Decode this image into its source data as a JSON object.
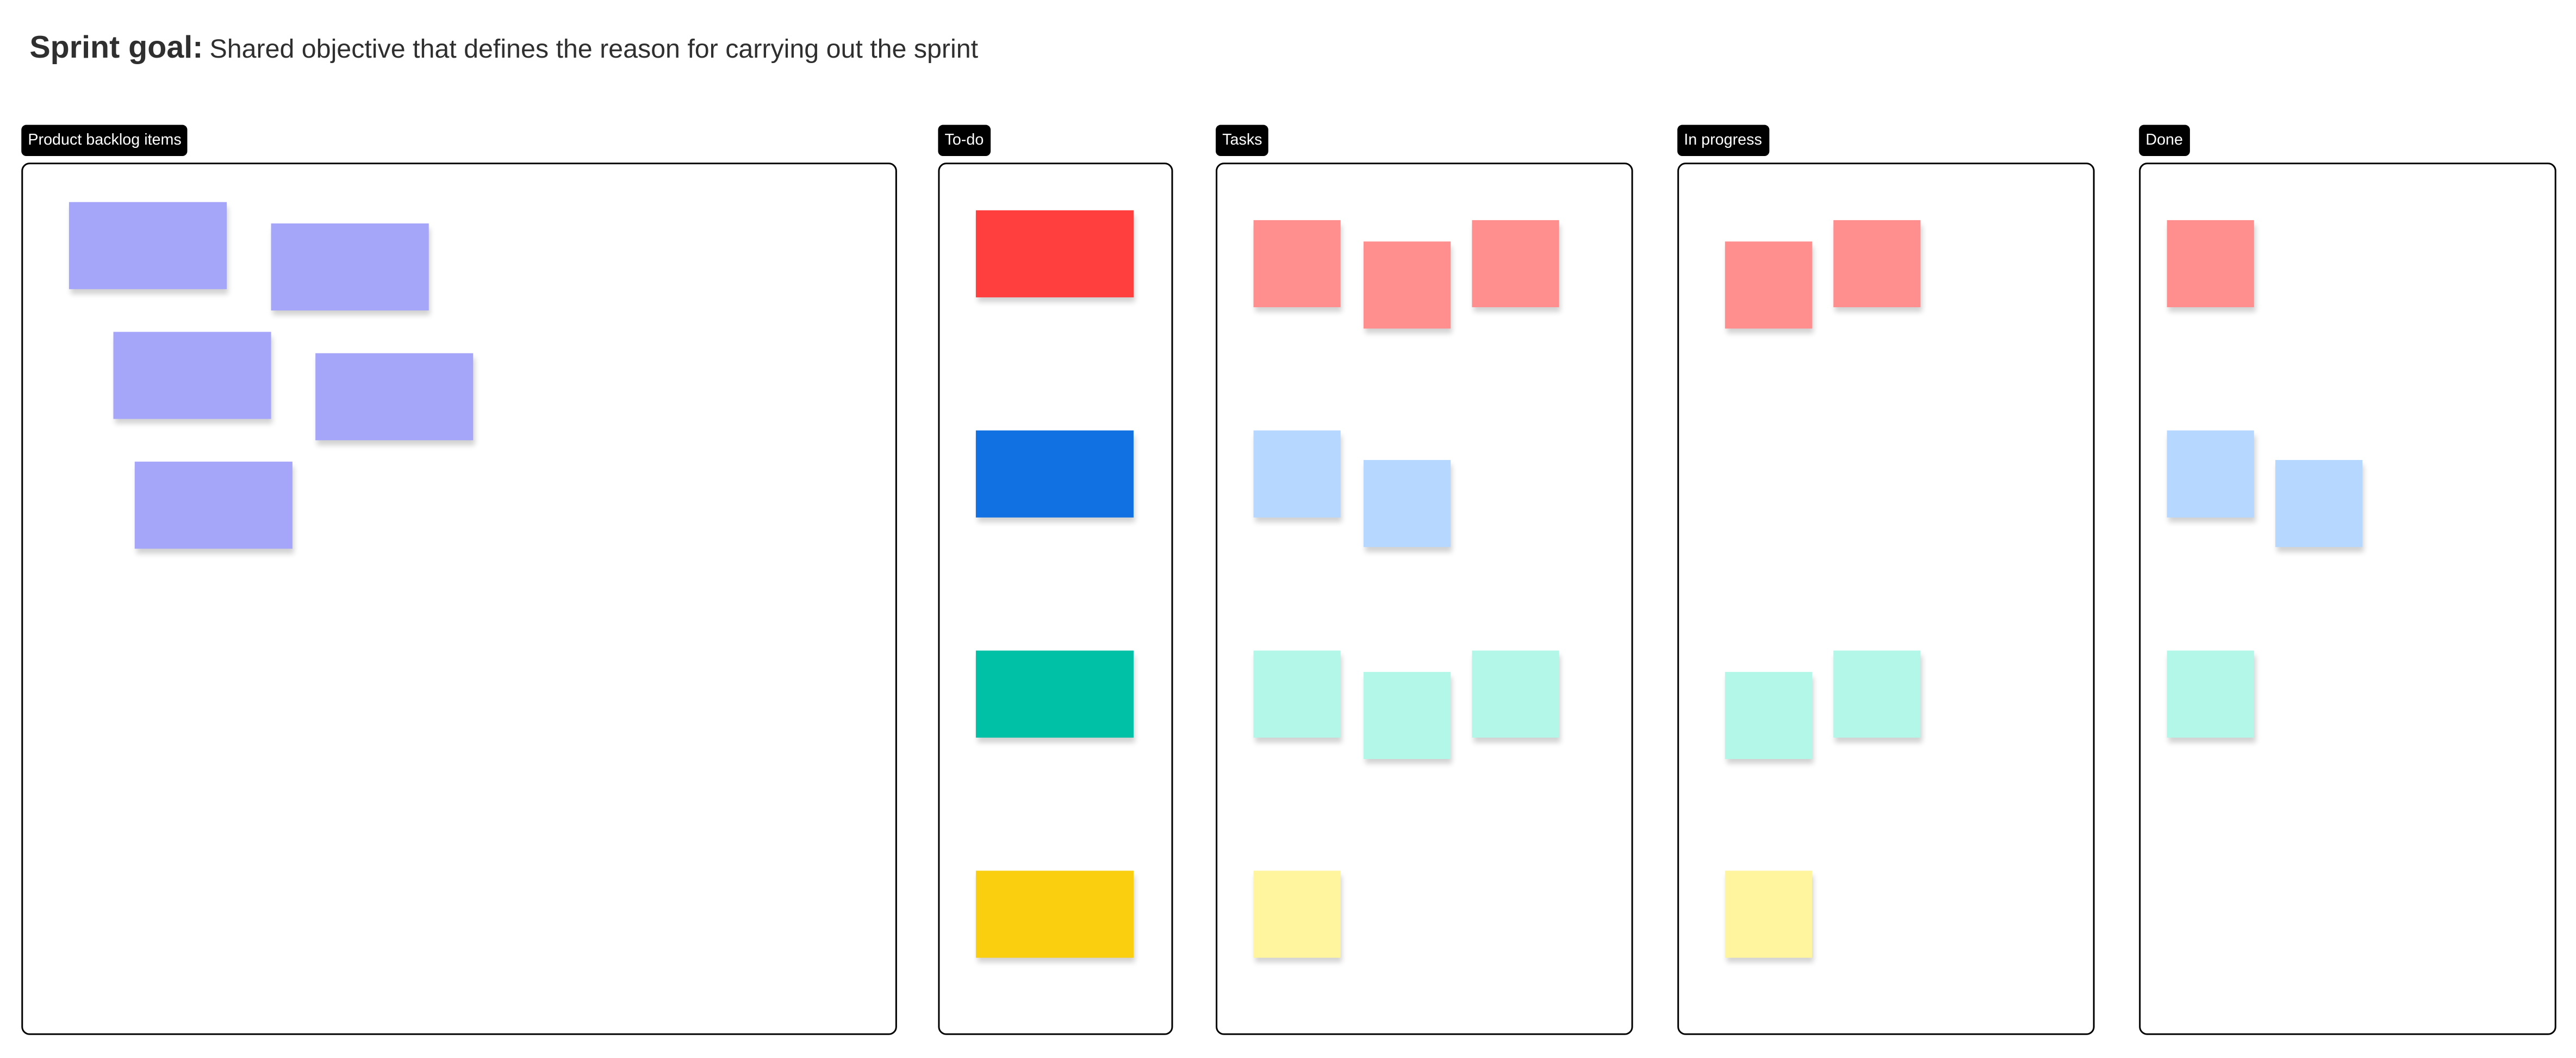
{
  "header": {
    "title_bold": "Sprint goal:",
    "title_text": "Shared objective that defines the reason for carrying out the sprint"
  },
  "palette": {
    "purple": "#A5A5FA",
    "red": "#FF3E3E",
    "blue": "#1271E2",
    "teal": "#00C0A6",
    "yellow": "#F9CF10",
    "pink": "#FF8E8E",
    "light_blue": "#B6D7FF",
    "mint": "#B2F7E8",
    "light_yellow": "#FFF59E"
  },
  "columns": [
    {
      "label": "Product backlog items",
      "notes": [
        "purple",
        "purple",
        "purple",
        "purple",
        "purple"
      ]
    },
    {
      "label": "To-do",
      "notes": [
        "red",
        "blue",
        "teal",
        "yellow"
      ]
    },
    {
      "label": "Tasks",
      "notes": [
        "pink",
        "pink",
        "pink",
        "light_blue",
        "light_blue",
        "mint",
        "mint",
        "mint",
        "light_yellow"
      ]
    },
    {
      "label": "In progress",
      "notes": [
        "pink",
        "pink",
        "mint",
        "mint",
        "light_yellow"
      ]
    },
    {
      "label": "Done",
      "notes": [
        "pink",
        "light_blue",
        "light_blue",
        "mint"
      ]
    }
  ]
}
